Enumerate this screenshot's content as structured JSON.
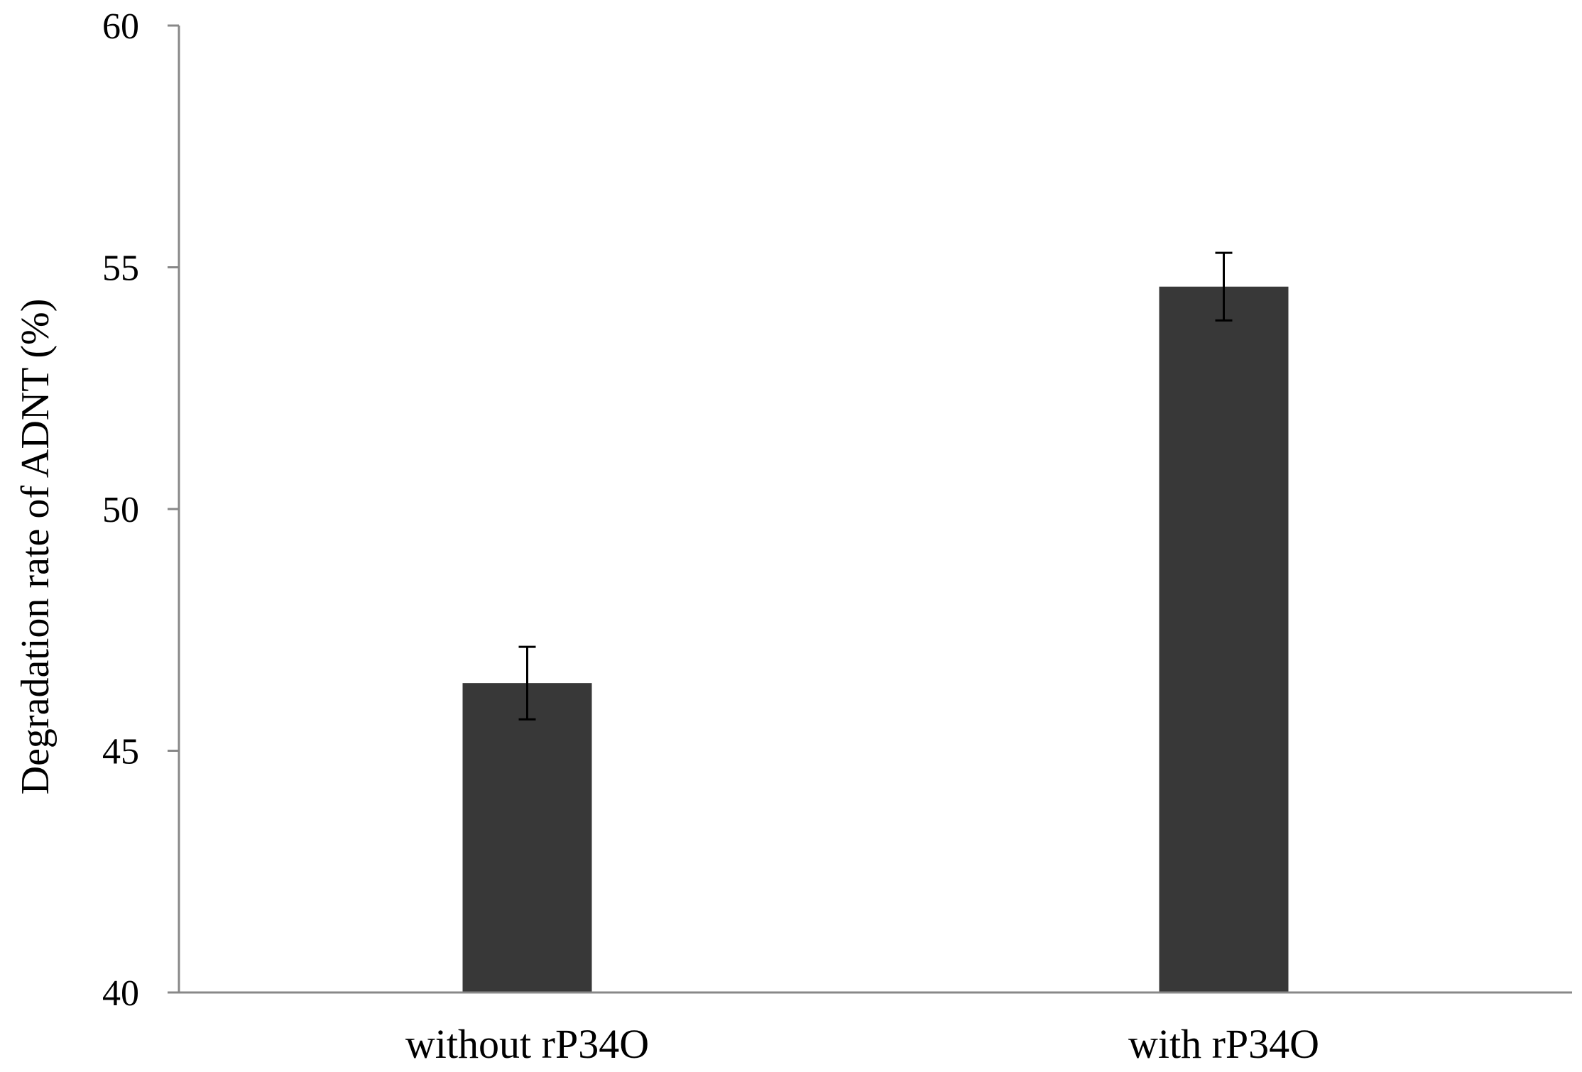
{
  "chart_data": {
    "type": "bar",
    "title": "",
    "xlabel": "",
    "ylabel": "Degradation rate of ADNT (%)",
    "categories": [
      "without  rP34O",
      "with  rP34O"
    ],
    "values": [
      46.4,
      54.6
    ],
    "error": [
      0.75,
      0.7
    ],
    "ylim": [
      40,
      60
    ],
    "yticks": [
      40,
      45,
      50,
      55,
      60
    ],
    "grid": false,
    "legend": "none",
    "bar_color": "#383838",
    "axis_color": "#888888",
    "errorbar_color": "#000000"
  }
}
